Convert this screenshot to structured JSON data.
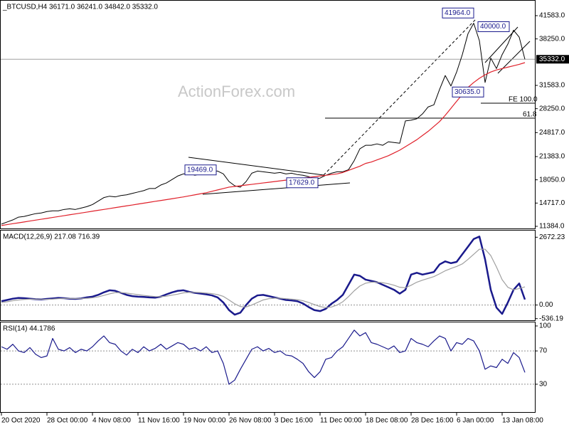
{
  "chart_data": [
    {
      "type": "line",
      "title": "_BTCUSD,H4  36171.0 36241.0 34842.0 35332.0",
      "watermark": "ActionForex.com",
      "ylim": [
        11078,
        43317
      ],
      "yticks": [
        {
          "value": 41583,
          "label": "41583.0"
        },
        {
          "value": 38250,
          "label": "38250.0"
        },
        {
          "value": 31583,
          "label": "31583.0"
        },
        {
          "value": 28250,
          "label": "28250.0"
        },
        {
          "value": 24817,
          "label": "24817.0"
        },
        {
          "value": 21383,
          "label": "21383.0"
        },
        {
          "value": 18050,
          "label": "18050.0"
        },
        {
          "value": 14717,
          "label": "14717.0"
        },
        {
          "value": 11384,
          "label": "11384.0"
        }
      ],
      "last_price": {
        "value": 35332,
        "label": "35332.0"
      },
      "annotations": [
        {
          "value": 41964,
          "label": "41964.0"
        },
        {
          "value": 40000,
          "label": "40000.0"
        },
        {
          "value": 30635,
          "label": "30635.0"
        },
        {
          "value": 19469,
          "label": "19469.0"
        },
        {
          "value": 17629,
          "label": "17629.0"
        }
      ],
      "fib_levels": [
        {
          "label": "FE 100.0",
          "price": 29037
        },
        {
          "label": "61.8",
          "price": 26895
        }
      ],
      "series": [
        {
          "color": "#000000",
          "values": [
            11700,
            12000,
            12300,
            12700,
            12800,
            13000,
            13200,
            13300,
            13500,
            13600,
            13600,
            13800,
            13900,
            13800,
            14000,
            14200,
            14500,
            15000,
            15500,
            15700,
            15600,
            15800,
            15900,
            16100,
            16300,
            16500,
            16800,
            16800,
            17300,
            17600,
            18100,
            18600,
            18900,
            19000,
            18700,
            18900,
            19100,
            19300,
            19300,
            18900,
            17800,
            17200,
            17000,
            17800,
            19000,
            19300,
            19200,
            19100,
            19000,
            19100,
            18900,
            19000,
            18800,
            18700,
            18500,
            18200,
            18300,
            18700,
            19000,
            19200,
            19200,
            19500,
            20800,
            22500,
            23000,
            23000,
            23200,
            23000,
            23500,
            23400,
            23300,
            26500,
            26600,
            26800,
            27500,
            28500,
            28800,
            31000,
            33000,
            31500,
            33500,
            36000,
            39000,
            40500,
            38000,
            32000,
            35500,
            34000,
            36000,
            37500,
            39500,
            38500,
            35332
          ]
        },
        {
          "color": "#e0202a",
          "values": [
            11500,
            11630,
            11760,
            11880,
            12010,
            12140,
            12270,
            12400,
            12520,
            12650,
            12780,
            12910,
            13040,
            13160,
            13290,
            13420,
            13550,
            13680,
            13800,
            13930,
            14060,
            14190,
            14320,
            14440,
            14570,
            14700,
            14830,
            14960,
            15080,
            15210,
            15340,
            15470,
            15600,
            15750,
            15900,
            16050,
            16200,
            16400,
            16600,
            16800,
            17000,
            17100,
            17200,
            17300,
            17400,
            17500,
            17600,
            17700,
            17800,
            17900,
            18000,
            18100,
            18200,
            18300,
            18400,
            18500,
            18600,
            18700,
            18800,
            18900,
            19100,
            19400,
            19700,
            20000,
            20400,
            20600,
            20900,
            21200,
            21500,
            21900,
            22300,
            22800,
            23300,
            23800,
            24400,
            25000,
            25700,
            26400,
            27300,
            28300,
            29300,
            30300,
            31300,
            32000,
            32600,
            33100,
            33500,
            33800,
            34000,
            34200,
            34400,
            34600,
            34850
          ]
        }
      ]
    },
    {
      "type": "line",
      "title": "MACD(12,26,9) 217.08 716.39",
      "ylim": [
        -600,
        2850
      ],
      "yticks": [
        {
          "value": 2672.23,
          "label": "2672.23"
        },
        {
          "value": 0,
          "label": "0.00"
        },
        {
          "value": -536.19,
          "label": "-536.19"
        }
      ],
      "levels": [
        0
      ],
      "series": [
        {
          "color": "#1a1a8c",
          "values": [
            150,
            200,
            250,
            280,
            270,
            250,
            230,
            220,
            240,
            260,
            280,
            270,
            250,
            240,
            260,
            300,
            330,
            400,
            500,
            580,
            560,
            480,
            400,
            350,
            330,
            320,
            300,
            290,
            330,
            420,
            500,
            560,
            580,
            520,
            480,
            450,
            420,
            380,
            300,
            100,
            -200,
            -380,
            -300,
            0,
            250,
            380,
            400,
            350,
            300,
            250,
            200,
            180,
            150,
            60,
            -80,
            -200,
            -240,
            -150,
            50,
            200,
            400,
            800,
            1200,
            1150,
            1000,
            950,
            900,
            800,
            700,
            600,
            450,
            600,
            1200,
            1270,
            1200,
            1250,
            1300,
            1600,
            1720,
            1650,
            1700,
            2000,
            2300,
            2600,
            2700,
            1800,
            600,
            -100,
            -350,
            100,
            600,
            850,
            217.08
          ]
        },
        {
          "color": "#a0a0a0",
          "values": [
            100,
            130,
            170,
            200,
            220,
            230,
            230,
            225,
            225,
            235,
            250,
            260,
            260,
            255,
            255,
            265,
            285,
            320,
            380,
            440,
            490,
            490,
            470,
            440,
            410,
            380,
            355,
            335,
            330,
            350,
            390,
            430,
            480,
            500,
            500,
            490,
            470,
            450,
            410,
            340,
            200,
            50,
            -60,
            -80,
            0,
            100,
            200,
            250,
            270,
            270,
            250,
            230,
            210,
            170,
            100,
            20,
            -60,
            -100,
            -80,
            0,
            130,
            330,
            560,
            750,
            860,
            900,
            900,
            880,
            840,
            780,
            700,
            680,
            780,
            900,
            980,
            1050,
            1120,
            1230,
            1350,
            1440,
            1520,
            1620,
            1800,
            2000,
            2200,
            2200,
            1950,
            1500,
            1000,
            700,
            600,
            650,
            716.39
          ]
        }
      ]
    },
    {
      "type": "line",
      "title": "RSI(14) 44.1786",
      "ylim": [
        0,
        100
      ],
      "yticks": [
        100,
        70,
        30
      ],
      "levels": [
        70,
        30
      ],
      "categories": [
        "20 Oct 2020",
        null,
        null,
        null,
        null,
        null,
        null,
        null,
        "28 Oct 00:00",
        null,
        null,
        null,
        null,
        null,
        null,
        null,
        "4 Nov 08:00",
        null,
        null,
        null,
        null,
        null,
        null,
        null,
        "11 Nov 16:00",
        null,
        null,
        null,
        null,
        null,
        null,
        null,
        "19 Nov 00:00",
        null,
        null,
        null,
        null,
        null,
        null,
        null,
        "26 Nov 08:00",
        null,
        null,
        null,
        null,
        null,
        null,
        null,
        "3 Dec 16:00",
        null,
        null,
        null,
        null,
        null,
        null,
        null,
        "11 Dec 00:00",
        null,
        null,
        null,
        null,
        null,
        null,
        null,
        "18 Dec 08:00",
        null,
        null,
        null,
        null,
        null,
        null,
        null,
        "28 Dec 16:00",
        null,
        null,
        null,
        null,
        null,
        null,
        null,
        "6 Jan 00:00",
        null,
        null,
        null,
        null,
        null,
        null,
        null,
        "13 Jan 08:00",
        null,
        null,
        null,
        null
      ],
      "series": [
        {
          "color": "#1a1a8c",
          "values": [
            75,
            72,
            78,
            70,
            68,
            74,
            66,
            62,
            64,
            85,
            72,
            70,
            74,
            68,
            72,
            70,
            75,
            82,
            88,
            80,
            78,
            70,
            65,
            72,
            68,
            75,
            70,
            73,
            78,
            72,
            76,
            80,
            78,
            72,
            74,
            70,
            75,
            68,
            70,
            55,
            30,
            35,
            48,
            60,
            72,
            75,
            70,
            73,
            68,
            70,
            65,
            64,
            60,
            55,
            45,
            38,
            45,
            60,
            62,
            70,
            75,
            85,
            95,
            88,
            92,
            80,
            78,
            75,
            72,
            76,
            68,
            70,
            85,
            80,
            78,
            75,
            82,
            88,
            85,
            70,
            80,
            78,
            85,
            82,
            70,
            48,
            52,
            50,
            60,
            55,
            68,
            62,
            44.1786
          ]
        }
      ]
    }
  ]
}
